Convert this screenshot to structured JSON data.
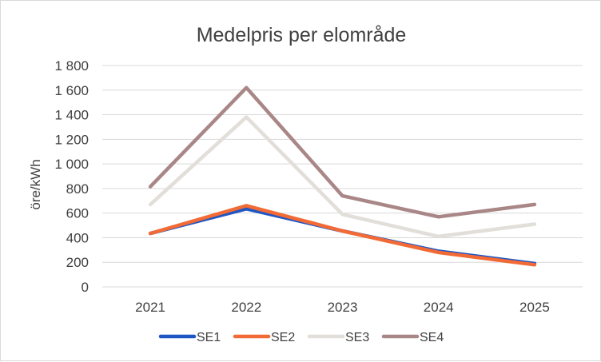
{
  "chart_data": {
    "type": "line",
    "title": "Medelpris per elområde",
    "ylabel": "öre/kWh",
    "xlabel": "",
    "x": [
      "2021",
      "2022",
      "2023",
      "2024",
      "2025"
    ],
    "ylim": [
      0,
      1800
    ],
    "yticks": [
      0,
      200,
      400,
      600,
      800,
      1000,
      1200,
      1400,
      1600,
      1800
    ],
    "yticklabels": [
      "0",
      "200",
      "400",
      "600",
      "800",
      "1 000",
      "1 200",
      "1 400",
      "1 600",
      "1 800"
    ],
    "grid": "horizontal",
    "legend": "bottom",
    "series": [
      {
        "name": "SE1",
        "color": "#1f56c4",
        "values": [
          435,
          635,
          455,
          290,
          190
        ]
      },
      {
        "name": "SE2",
        "color": "#f26a35",
        "values": [
          435,
          660,
          455,
          280,
          180
        ]
      },
      {
        "name": "SE3",
        "color": "#e2ded9",
        "values": [
          670,
          1380,
          590,
          410,
          510
        ]
      },
      {
        "name": "SE4",
        "color": "#a98787",
        "values": [
          815,
          1620,
          740,
          570,
          670
        ]
      }
    ]
  }
}
